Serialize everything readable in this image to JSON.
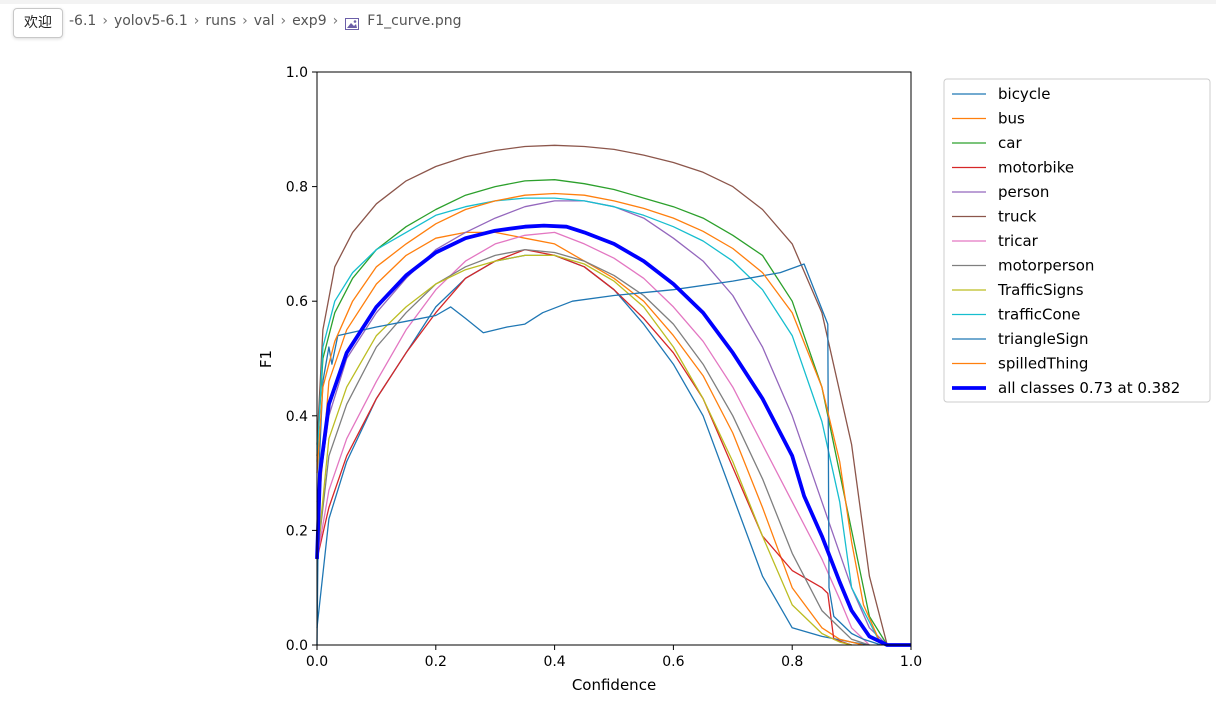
{
  "tooltip": "欢迎",
  "breadcrumb": {
    "items": [
      "-6.1",
      "yolov5-6.1",
      "runs",
      "val",
      "exp9"
    ],
    "file": "F1_curve.png"
  },
  "colors": {
    "bicycle": "#1f77b4",
    "bus": "#ff7f0e",
    "car": "#2ca02c",
    "motorbike": "#d62728",
    "person": "#9467bd",
    "truck": "#8c564b",
    "tricar": "#e377c2",
    "motorperson": "#7f7f7f",
    "TrafficSigns": "#bcbd22",
    "trafficCone": "#17becf",
    "all": "#0000ff"
  },
  "chart_data": {
    "type": "line",
    "xlabel": "Confidence",
    "ylabel": "F1",
    "xlim": [
      0.0,
      1.0
    ],
    "ylim": [
      0.0,
      1.0
    ],
    "xticks": [
      "0.0",
      "0.2",
      "0.4",
      "0.6",
      "0.8",
      "1.0"
    ],
    "yticks": [
      "0.0",
      "0.2",
      "0.4",
      "0.6",
      "0.8",
      "1.0"
    ],
    "legend_position": "outside-right",
    "grid": false,
    "series": [
      {
        "name": "bicycle",
        "color": "#1f77b4",
        "width": 1.3,
        "x": [
          0,
          0.02,
          0.05,
          0.1,
          0.15,
          0.2,
          0.25,
          0.3,
          0.35,
          0.4,
          0.45,
          0.5,
          0.55,
          0.6,
          0.65,
          0.7,
          0.75,
          0.8,
          0.85,
          0.9,
          0.93
        ],
        "y": [
          0.03,
          0.22,
          0.32,
          0.43,
          0.51,
          0.59,
          0.64,
          0.67,
          0.68,
          0.68,
          0.66,
          0.62,
          0.56,
          0.49,
          0.4,
          0.26,
          0.12,
          0.03,
          0.015,
          0.005,
          0.0
        ]
      },
      {
        "name": "bus",
        "color": "#ff7f0e",
        "width": 1.3,
        "x": [
          0,
          0.02,
          0.05,
          0.1,
          0.15,
          0.2,
          0.25,
          0.3,
          0.35,
          0.4,
          0.45,
          0.5,
          0.55,
          0.6,
          0.65,
          0.7,
          0.75,
          0.8,
          0.85,
          0.88,
          0.92
        ],
        "y": [
          0.2,
          0.46,
          0.55,
          0.63,
          0.68,
          0.71,
          0.72,
          0.72,
          0.71,
          0.7,
          0.67,
          0.64,
          0.6,
          0.54,
          0.47,
          0.37,
          0.24,
          0.1,
          0.03,
          0.01,
          0.0
        ]
      },
      {
        "name": "car",
        "color": "#2ca02c",
        "width": 1.3,
        "x": [
          0,
          0.01,
          0.03,
          0.06,
          0.1,
          0.15,
          0.2,
          0.25,
          0.3,
          0.35,
          0.4,
          0.45,
          0.5,
          0.55,
          0.6,
          0.65,
          0.7,
          0.75,
          0.8,
          0.85,
          0.9,
          0.93,
          0.96
        ],
        "y": [
          0.33,
          0.5,
          0.58,
          0.64,
          0.69,
          0.73,
          0.76,
          0.785,
          0.8,
          0.81,
          0.812,
          0.805,
          0.795,
          0.78,
          0.765,
          0.745,
          0.715,
          0.68,
          0.6,
          0.45,
          0.2,
          0.05,
          0.0
        ]
      },
      {
        "name": "motorbike",
        "color": "#d62728",
        "width": 1.3,
        "x": [
          0,
          0.02,
          0.05,
          0.1,
          0.15,
          0.2,
          0.25,
          0.3,
          0.35,
          0.4,
          0.45,
          0.5,
          0.55,
          0.6,
          0.65,
          0.7,
          0.75,
          0.8,
          0.85,
          0.86,
          0.87,
          0.9
        ],
        "y": [
          0.15,
          0.24,
          0.33,
          0.43,
          0.51,
          0.58,
          0.64,
          0.67,
          0.69,
          0.68,
          0.66,
          0.62,
          0.57,
          0.51,
          0.43,
          0.31,
          0.19,
          0.13,
          0.1,
          0.09,
          0.01,
          0.0
        ]
      },
      {
        "name": "person",
        "color": "#9467bd",
        "width": 1.3,
        "x": [
          0,
          0.02,
          0.05,
          0.1,
          0.15,
          0.2,
          0.25,
          0.3,
          0.35,
          0.4,
          0.45,
          0.5,
          0.55,
          0.6,
          0.65,
          0.7,
          0.75,
          0.8,
          0.85,
          0.9,
          0.93,
          0.96
        ],
        "y": [
          0.25,
          0.4,
          0.5,
          0.58,
          0.64,
          0.69,
          0.72,
          0.745,
          0.765,
          0.775,
          0.775,
          0.765,
          0.745,
          0.71,
          0.67,
          0.61,
          0.52,
          0.4,
          0.25,
          0.1,
          0.03,
          0.0
        ]
      },
      {
        "name": "truck",
        "color": "#8c564b",
        "width": 1.3,
        "x": [
          0,
          0.01,
          0.03,
          0.06,
          0.1,
          0.15,
          0.2,
          0.25,
          0.3,
          0.35,
          0.4,
          0.45,
          0.5,
          0.55,
          0.6,
          0.65,
          0.7,
          0.75,
          0.8,
          0.85,
          0.9,
          0.93,
          0.96
        ],
        "y": [
          0.35,
          0.55,
          0.66,
          0.72,
          0.77,
          0.81,
          0.835,
          0.852,
          0.863,
          0.87,
          0.872,
          0.87,
          0.865,
          0.855,
          0.842,
          0.825,
          0.8,
          0.76,
          0.7,
          0.58,
          0.35,
          0.12,
          0.0
        ]
      },
      {
        "name": "tricar",
        "color": "#e377c2",
        "width": 1.3,
        "x": [
          0,
          0.02,
          0.05,
          0.1,
          0.15,
          0.2,
          0.25,
          0.3,
          0.35,
          0.4,
          0.45,
          0.5,
          0.55,
          0.6,
          0.65,
          0.7,
          0.75,
          0.8,
          0.85,
          0.88,
          0.9,
          0.93
        ],
        "y": [
          0.15,
          0.27,
          0.36,
          0.46,
          0.55,
          0.62,
          0.67,
          0.7,
          0.715,
          0.72,
          0.7,
          0.675,
          0.64,
          0.59,
          0.53,
          0.45,
          0.35,
          0.25,
          0.15,
          0.08,
          0.03,
          0.0
        ]
      },
      {
        "name": "motorperson",
        "color": "#7f7f7f",
        "width": 1.3,
        "x": [
          0,
          0.02,
          0.05,
          0.1,
          0.15,
          0.2,
          0.25,
          0.3,
          0.35,
          0.4,
          0.45,
          0.5,
          0.55,
          0.6,
          0.65,
          0.7,
          0.75,
          0.8,
          0.85,
          0.9,
          0.93
        ],
        "y": [
          0.15,
          0.33,
          0.42,
          0.52,
          0.58,
          0.63,
          0.66,
          0.68,
          0.69,
          0.685,
          0.67,
          0.645,
          0.61,
          0.56,
          0.49,
          0.4,
          0.29,
          0.16,
          0.06,
          0.01,
          0.0
        ]
      },
      {
        "name": "TrafficSigns",
        "color": "#bcbd22",
        "width": 1.3,
        "x": [
          0,
          0.02,
          0.05,
          0.1,
          0.15,
          0.2,
          0.25,
          0.3,
          0.35,
          0.4,
          0.45,
          0.5,
          0.55,
          0.6,
          0.65,
          0.7,
          0.75,
          0.8,
          0.85,
          0.88,
          0.9
        ],
        "y": [
          0.15,
          0.36,
          0.45,
          0.54,
          0.59,
          0.63,
          0.655,
          0.67,
          0.68,
          0.68,
          0.665,
          0.635,
          0.59,
          0.52,
          0.43,
          0.32,
          0.19,
          0.07,
          0.02,
          0.005,
          0.0
        ]
      },
      {
        "name": "trafficCone",
        "color": "#17becf",
        "width": 1.3,
        "x": [
          0,
          0.01,
          0.03,
          0.06,
          0.1,
          0.15,
          0.2,
          0.25,
          0.3,
          0.35,
          0.4,
          0.45,
          0.5,
          0.55,
          0.6,
          0.65,
          0.7,
          0.75,
          0.8,
          0.85,
          0.88,
          0.9,
          0.95
        ],
        "y": [
          0.32,
          0.52,
          0.6,
          0.65,
          0.69,
          0.72,
          0.75,
          0.765,
          0.775,
          0.78,
          0.78,
          0.775,
          0.765,
          0.75,
          0.73,
          0.705,
          0.67,
          0.62,
          0.54,
          0.39,
          0.25,
          0.1,
          0.0
        ]
      },
      {
        "name": "triangleSign",
        "color": "#1f77b4",
        "width": 1.3,
        "x": [
          0,
          0.003,
          0.01,
          0.02,
          0.025,
          0.035,
          0.1,
          0.15,
          0.2,
          0.225,
          0.25,
          0.28,
          0.32,
          0.35,
          0.38,
          0.43,
          0.5,
          0.6,
          0.7,
          0.78,
          0.82,
          0.86,
          0.862,
          0.87,
          0.9,
          0.91,
          0.92,
          0.95
        ],
        "y": [
          0.0,
          0.3,
          0.46,
          0.52,
          0.49,
          0.54,
          0.555,
          0.565,
          0.575,
          0.59,
          0.57,
          0.545,
          0.555,
          0.56,
          0.58,
          0.6,
          0.61,
          0.62,
          0.635,
          0.65,
          0.665,
          0.56,
          0.1,
          0.05,
          0.02,
          0.015,
          0.01,
          0.0
        ]
      },
      {
        "name": "spilledThing",
        "color": "#ff7f0e",
        "width": 1.3,
        "x": [
          0,
          0.01,
          0.03,
          0.06,
          0.1,
          0.15,
          0.2,
          0.25,
          0.3,
          0.35,
          0.4,
          0.45,
          0.5,
          0.55,
          0.6,
          0.65,
          0.7,
          0.75,
          0.8,
          0.85,
          0.88,
          0.9,
          0.92,
          0.95
        ],
        "y": [
          0.3,
          0.45,
          0.53,
          0.6,
          0.66,
          0.7,
          0.735,
          0.76,
          0.775,
          0.785,
          0.788,
          0.785,
          0.775,
          0.762,
          0.745,
          0.722,
          0.692,
          0.65,
          0.58,
          0.45,
          0.32,
          0.18,
          0.07,
          0.0
        ]
      },
      {
        "name": "all classes 0.73 at 0.382",
        "color": "#0000ff",
        "width": 3.8,
        "x": [
          0,
          0.005,
          0.02,
          0.05,
          0.1,
          0.15,
          0.2,
          0.25,
          0.3,
          0.35,
          0.382,
          0.42,
          0.45,
          0.5,
          0.55,
          0.6,
          0.65,
          0.7,
          0.75,
          0.8,
          0.82,
          0.85,
          0.88,
          0.9,
          0.93,
          0.96,
          1.0
        ],
        "y": [
          0.15,
          0.3,
          0.42,
          0.51,
          0.59,
          0.645,
          0.685,
          0.71,
          0.723,
          0.73,
          0.732,
          0.73,
          0.72,
          0.7,
          0.67,
          0.63,
          0.58,
          0.51,
          0.43,
          0.33,
          0.26,
          0.19,
          0.11,
          0.06,
          0.015,
          0.0,
          0.0
        ]
      }
    ]
  }
}
